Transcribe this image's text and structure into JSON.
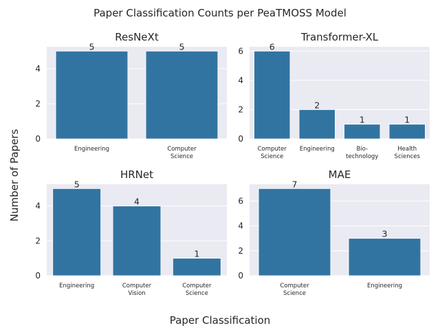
{
  "figure": {
    "suptitle": "Paper Classification Counts per PeaTMOSS Model",
    "xlabel": "Paper Classification",
    "ylabel": "Number of Papers",
    "colors": {
      "bar": "#3274a1",
      "plot_bg": "#eaeaf2",
      "grid": "#ffffff",
      "text": "#262626"
    }
  },
  "chart_data": [
    {
      "type": "bar",
      "title": "ResNeXt",
      "categories": [
        "Engineering",
        "Computer\nScience"
      ],
      "values": [
        5,
        5
      ],
      "ylim": [
        0,
        5.25
      ],
      "yticks": [
        0,
        2,
        4
      ],
      "data_labels": [
        "5",
        "5"
      ],
      "grid": true
    },
    {
      "type": "bar",
      "title": "Transformer-XL",
      "categories": [
        "Computer\nScience",
        "Engineering",
        "Bio-\ntechnology",
        "Health\nSciences"
      ],
      "values": [
        6,
        2,
        1,
        1
      ],
      "ylim": [
        0,
        6.3
      ],
      "yticks": [
        0,
        2,
        4,
        6
      ],
      "data_labels": [
        "6",
        "2",
        "1",
        "1"
      ],
      "grid": true
    },
    {
      "type": "bar",
      "title": "HRNet",
      "categories": [
        "Engineering",
        "Computer\nVision",
        "Computer\nScience"
      ],
      "values": [
        5,
        4,
        1
      ],
      "ylim": [
        0,
        5.25
      ],
      "yticks": [
        0,
        2,
        4
      ],
      "data_labels": [
        "5",
        "4",
        "1"
      ],
      "grid": true
    },
    {
      "type": "bar",
      "title": "MAE",
      "categories": [
        "Computer\nScience",
        "Engineering"
      ],
      "values": [
        7,
        3
      ],
      "ylim": [
        0,
        7.35
      ],
      "yticks": [
        0,
        2,
        4,
        6
      ],
      "data_labels": [
        "7",
        "3"
      ],
      "grid": true
    }
  ]
}
